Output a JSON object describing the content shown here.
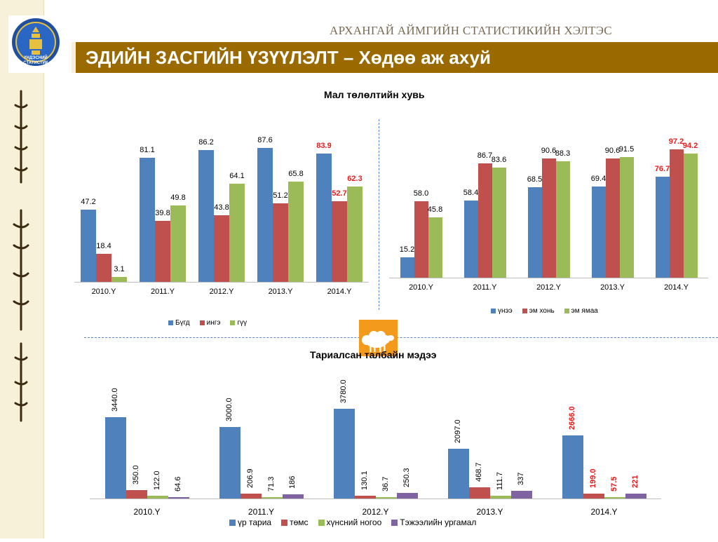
{
  "header": {
    "org_title": "АРХАНГАЙ АЙМГИЙН СТАТИСТИКИЙН ХЭЛТЭС",
    "slide_title": "ЭДИЙН ЗАСГИЙН ҮЗҮҮЛЭЛТ – Хөдөө аж ахуй",
    "logo_text": "ҮНДЭСНИЙ СТАТИСТИК",
    "bar_color": "#9a6a00"
  },
  "section_titles": {
    "livestock": "Мал төлөлтийн хувь",
    "crops": "Тариалсан талбайн мэдээ"
  },
  "decor": {
    "sheep_icon": "sheep-icon",
    "sheep_box_color": "#f39a1c"
  },
  "chart_data": [
    {
      "type": "bar",
      "title": "Мал төлөлтийн хувь",
      "categories": [
        "2010.Y",
        "2011.Y",
        "2012.Y",
        "2013.Y",
        "2014.Y"
      ],
      "series": [
        {
          "name": "Бүгд",
          "color": "#4f81bd",
          "values": [
            47.2,
            81.1,
            86.2,
            87.6,
            83.9
          ],
          "labels": [
            "47.2",
            "81.1",
            "86.2",
            "87.6",
            "83.9"
          ]
        },
        {
          "name": "ингэ",
          "color": "#c0504d",
          "values": [
            18.4,
            39.8,
            43.8,
            51.2,
            52.7
          ],
          "labels": [
            "18.4",
            "39.8",
            "43.8",
            "51.2",
            "52.7"
          ]
        },
        {
          "name": "гүү",
          "color": "#9bbb59",
          "values": [
            3.1,
            49.8,
            64.1,
            65.8,
            62.3
          ],
          "labels": [
            "3.1",
            "49.8",
            "64.1",
            "65.8",
            "62.3"
          ]
        }
      ],
      "highlight_category": "2014.Y",
      "ylim": [
        0,
        100
      ],
      "legend": "bottom",
      "grid": false
    },
    {
      "type": "bar",
      "categories": [
        "2010.Y",
        "2011.Y",
        "2012.Y",
        "2013.Y",
        "2014.Y"
      ],
      "series": [
        {
          "name": "үнээ",
          "color": "#4f81bd",
          "values": [
            15.2,
            58.4,
            68.5,
            69.4,
            76.7
          ],
          "labels": [
            "15.2",
            "58.4",
            "68.5",
            "69.4",
            "76.7"
          ]
        },
        {
          "name": "эм хонь",
          "color": "#c0504d",
          "values": [
            58.0,
            86.7,
            90.6,
            90.6,
            97.2
          ],
          "labels": [
            "58.0",
            "86.7",
            "90.6",
            "90.6",
            "97.2"
          ]
        },
        {
          "name": "эм ямаа",
          "color": "#9bbb59",
          "values": [
            45.8,
            83.6,
            88.3,
            91.5,
            94.2
          ],
          "labels": [
            "45.8",
            "83.6",
            "88.3",
            "91.5",
            "94.2"
          ]
        }
      ],
      "highlight_category": "2014.Y",
      "ylim": [
        0,
        100
      ],
      "legend": "bottom",
      "grid": false
    },
    {
      "type": "bar",
      "title": "Тариалсан талбайн мэдээ",
      "categories": [
        "2010.Y",
        "2011.Y",
        "2012.Y",
        "2013.Y",
        "2014.Y"
      ],
      "series": [
        {
          "name": "үр тариа",
          "color": "#4f81bd",
          "values": [
            3440.0,
            3000.0,
            3780.0,
            2097.0,
            2666.0
          ],
          "labels": [
            "3440.0",
            "3000.0",
            "3780.0",
            "2097.0",
            "2666.0"
          ]
        },
        {
          "name": "төмс",
          "color": "#c0504d",
          "values": [
            350.0,
            206.9,
            130.1,
            468.7,
            199.0
          ],
          "labels": [
            "350.0",
            "206.9",
            "130.1",
            "468.7",
            "199.0"
          ]
        },
        {
          "name": "хүнсний ногоо",
          "color": "#9bbb59",
          "values": [
            122.0,
            71.3,
            36.7,
            111.7,
            57.5
          ],
          "labels": [
            "122.0",
            "71.3",
            "36.7",
            "111.7",
            "57.5"
          ]
        },
        {
          "name": "Тэжээлийн ургамал",
          "color": "#8064a2",
          "values": [
            64.6,
            186,
            250.3,
            337,
            221
          ],
          "labels": [
            "64.6",
            "186",
            "250.3",
            "337",
            "221"
          ]
        }
      ],
      "highlight_category": "2014.Y",
      "ylim": [
        0,
        4200
      ],
      "legend": "bottom",
      "grid": false
    }
  ]
}
